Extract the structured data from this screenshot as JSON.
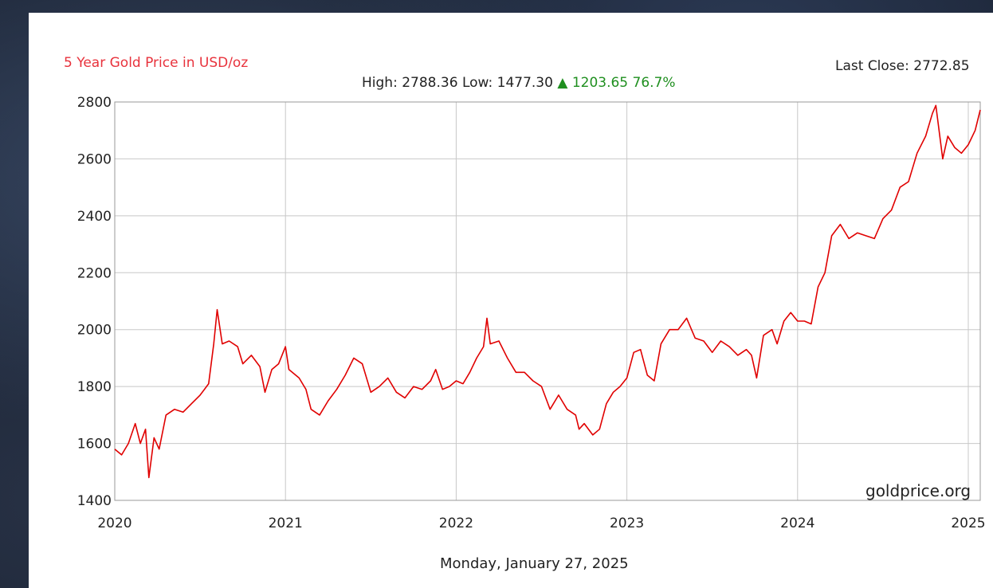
{
  "header": {
    "title": "5 Year Gold Price in USD/oz",
    "last_close_label": "Last Close:",
    "last_close_value": "2772.85",
    "high_label": "High:",
    "high_value": "2788.36",
    "low_label": "Low:",
    "low_value": "1477.30",
    "change_arrow": "▲",
    "change_value": "1203.65",
    "change_pct": "76.7%"
  },
  "footer": {
    "watermark": "goldprice.org",
    "date": "Monday, January 27, 2025"
  },
  "colors": {
    "line": "#e00000",
    "title": "#e8323c",
    "up": "#1f8f1f",
    "grid": "#c8c8c8"
  },
  "chart_data": {
    "type": "line",
    "title": "5 Year Gold Price in USD/oz",
    "xlabel": "",
    "ylabel": "",
    "xlim": [
      2020.0,
      2025.07
    ],
    "ylim": [
      1400,
      2800
    ],
    "x_ticks": [
      2020,
      2021,
      2022,
      2023,
      2024,
      2025
    ],
    "y_ticks": [
      1400,
      1600,
      1800,
      2000,
      2200,
      2400,
      2600,
      2800
    ],
    "grid": true,
    "series": [
      {
        "values": [
          [
            2020.0,
            1580
          ],
          [
            2020.04,
            1560
          ],
          [
            2020.08,
            1600
          ],
          [
            2020.12,
            1670
          ],
          [
            2020.15,
            1600
          ],
          [
            2020.18,
            1650
          ],
          [
            2020.2,
            1480
          ],
          [
            2020.23,
            1620
          ],
          [
            2020.26,
            1580
          ],
          [
            2020.3,
            1700
          ],
          [
            2020.35,
            1720
          ],
          [
            2020.4,
            1710
          ],
          [
            2020.45,
            1740
          ],
          [
            2020.5,
            1770
          ],
          [
            2020.55,
            1810
          ],
          [
            2020.58,
            1950
          ],
          [
            2020.6,
            2070
          ],
          [
            2020.63,
            1950
          ],
          [
            2020.67,
            1960
          ],
          [
            2020.72,
            1940
          ],
          [
            2020.75,
            1880
          ],
          [
            2020.8,
            1910
          ],
          [
            2020.85,
            1870
          ],
          [
            2020.88,
            1780
          ],
          [
            2020.92,
            1860
          ],
          [
            2020.96,
            1880
          ],
          [
            2021.0,
            1940
          ],
          [
            2021.02,
            1860
          ],
          [
            2021.08,
            1830
          ],
          [
            2021.12,
            1790
          ],
          [
            2021.15,
            1720
          ],
          [
            2021.2,
            1700
          ],
          [
            2021.25,
            1750
          ],
          [
            2021.3,
            1790
          ],
          [
            2021.35,
            1840
          ],
          [
            2021.4,
            1900
          ],
          [
            2021.45,
            1880
          ],
          [
            2021.5,
            1780
          ],
          [
            2021.55,
            1800
          ],
          [
            2021.6,
            1830
          ],
          [
            2021.65,
            1780
          ],
          [
            2021.7,
            1760
          ],
          [
            2021.75,
            1800
          ],
          [
            2021.8,
            1790
          ],
          [
            2021.85,
            1820
          ],
          [
            2021.88,
            1860
          ],
          [
            2021.92,
            1790
          ],
          [
            2021.96,
            1800
          ],
          [
            2022.0,
            1820
          ],
          [
            2022.04,
            1810
          ],
          [
            2022.08,
            1850
          ],
          [
            2022.12,
            1900
          ],
          [
            2022.16,
            1940
          ],
          [
            2022.18,
            2040
          ],
          [
            2022.2,
            1950
          ],
          [
            2022.25,
            1960
          ],
          [
            2022.3,
            1900
          ],
          [
            2022.35,
            1850
          ],
          [
            2022.4,
            1850
          ],
          [
            2022.45,
            1820
          ],
          [
            2022.5,
            1800
          ],
          [
            2022.55,
            1720
          ],
          [
            2022.6,
            1770
          ],
          [
            2022.65,
            1720
          ],
          [
            2022.7,
            1700
          ],
          [
            2022.72,
            1650
          ],
          [
            2022.75,
            1670
          ],
          [
            2022.8,
            1630
          ],
          [
            2022.84,
            1650
          ],
          [
            2022.88,
            1740
          ],
          [
            2022.92,
            1780
          ],
          [
            2022.96,
            1800
          ],
          [
            2023.0,
            1830
          ],
          [
            2023.04,
            1920
          ],
          [
            2023.08,
            1930
          ],
          [
            2023.12,
            1840
          ],
          [
            2023.16,
            1820
          ],
          [
            2023.2,
            1950
          ],
          [
            2023.25,
            2000
          ],
          [
            2023.3,
            2000
          ],
          [
            2023.35,
            2040
          ],
          [
            2023.4,
            1970
          ],
          [
            2023.45,
            1960
          ],
          [
            2023.5,
            1920
          ],
          [
            2023.55,
            1960
          ],
          [
            2023.6,
            1940
          ],
          [
            2023.65,
            1910
          ],
          [
            2023.7,
            1930
          ],
          [
            2023.73,
            1910
          ],
          [
            2023.76,
            1830
          ],
          [
            2023.8,
            1980
          ],
          [
            2023.85,
            2000
          ],
          [
            2023.88,
            1950
          ],
          [
            2023.92,
            2030
          ],
          [
            2023.96,
            2060
          ],
          [
            2024.0,
            2030
          ],
          [
            2024.04,
            2030
          ],
          [
            2024.08,
            2020
          ],
          [
            2024.12,
            2150
          ],
          [
            2024.16,
            2200
          ],
          [
            2024.2,
            2330
          ],
          [
            2024.25,
            2370
          ],
          [
            2024.3,
            2320
          ],
          [
            2024.35,
            2340
          ],
          [
            2024.4,
            2330
          ],
          [
            2024.45,
            2320
          ],
          [
            2024.5,
            2390
          ],
          [
            2024.55,
            2420
          ],
          [
            2024.6,
            2500
          ],
          [
            2024.65,
            2520
          ],
          [
            2024.7,
            2620
          ],
          [
            2024.75,
            2680
          ],
          [
            2024.79,
            2760
          ],
          [
            2024.81,
            2788
          ],
          [
            2024.85,
            2600
          ],
          [
            2024.88,
            2680
          ],
          [
            2024.92,
            2640
          ],
          [
            2024.96,
            2620
          ],
          [
            2025.0,
            2650
          ],
          [
            2025.04,
            2700
          ],
          [
            2025.07,
            2772
          ]
        ]
      }
    ]
  }
}
